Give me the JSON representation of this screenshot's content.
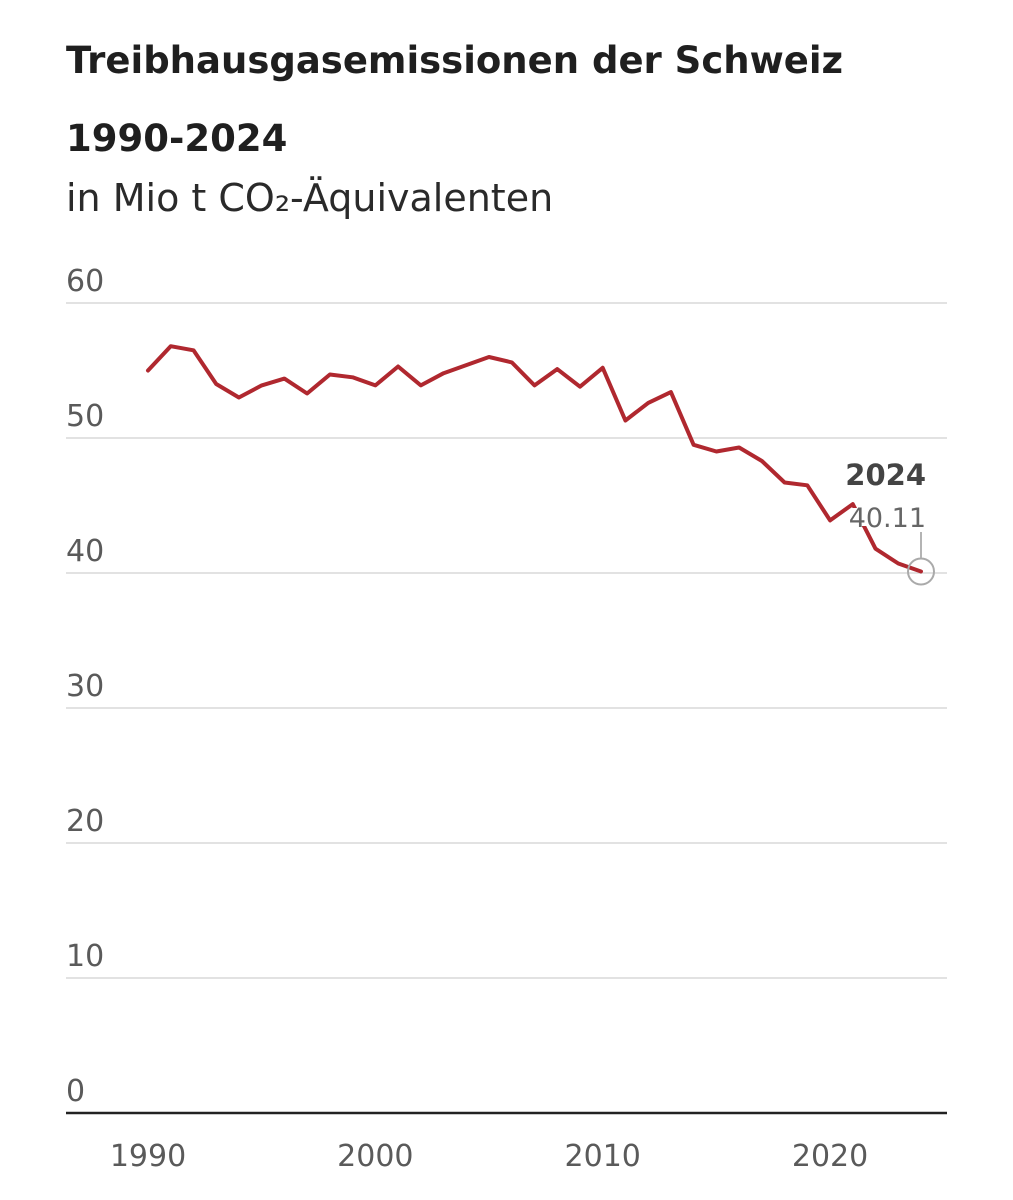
{
  "chart_data": {
    "type": "line",
    "title": "Treibhausgasemissionen der Schweiz 1990-2024",
    "subtitle": "in Mio t CO₂-Äquivalenten",
    "xlabel": "",
    "ylabel": "",
    "xlim": [
      1990,
      2024
    ],
    "ylim": [
      0,
      60
    ],
    "x_ticks": [
      "1990",
      "2000",
      "2010",
      "2020"
    ],
    "y_ticks": [
      "60",
      "50",
      "40",
      "30",
      "20",
      "10",
      "0"
    ],
    "grid": true,
    "legend": "none",
    "line_color": "#b0282f",
    "series": [
      {
        "x": [
          1990,
          1991,
          1992,
          1993,
          1994,
          1995,
          1996,
          1997,
          1998,
          1999,
          2000,
          2001,
          2002,
          2003,
          2004,
          2005,
          2006,
          2007,
          2008,
          2009,
          2010,
          2011,
          2012,
          2013,
          2014,
          2015,
          2016,
          2017,
          2018,
          2019,
          2020,
          2021,
          2022,
          2023,
          2024
        ],
        "values": [
          55.0,
          56.8,
          56.5,
          54.0,
          53.0,
          53.9,
          54.4,
          53.3,
          54.7,
          54.5,
          53.9,
          55.3,
          53.9,
          54.8,
          55.4,
          56.0,
          55.6,
          53.9,
          55.1,
          53.8,
          55.2,
          51.3,
          52.6,
          53.4,
          49.5,
          49.0,
          49.3,
          48.3,
          46.7,
          46.5,
          43.9,
          45.1,
          41.8,
          40.7,
          40.11
        ]
      }
    ],
    "annotation": {
      "year": "2024",
      "value": "40.11",
      "x": 2024,
      "y": 40.11
    }
  }
}
